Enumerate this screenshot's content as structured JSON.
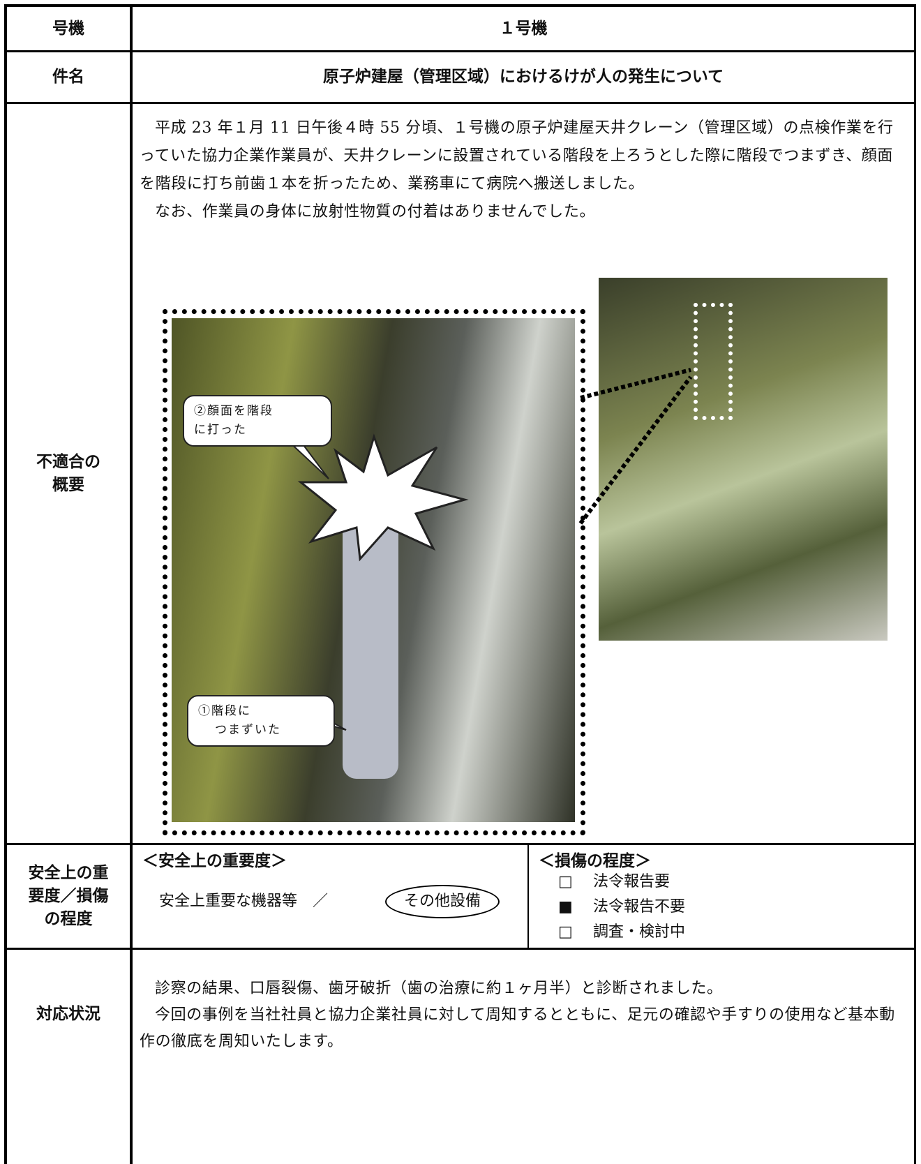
{
  "unit": {
    "label": "号機",
    "value": "１号機"
  },
  "subject": {
    "label": "件名",
    "value": "原子炉建屋（管理区域）におけるけが人の発生について"
  },
  "overview": {
    "label_lines": [
      "不適合の",
      "概要"
    ],
    "paragraphs": [
      "平成 23 年１月 11 日午後４時 55 分頃、１号機の原子炉建屋天井クレーン（管理区域）の点検作業を行っていた協力企業作業員が、天井クレーンに設置されている階段を上ろうとした際に階段でつまずき、顔面を階段に打ち前歯１本を折ったため、業務車にて病院へ搬送しました。",
      "なお、作業員の身体に放射性物質の付着はありませんでした。"
    ],
    "callouts": [
      [
        "②顔面を階段",
        "に打った"
      ],
      [
        "①階段に",
        "つまずいた"
      ]
    ]
  },
  "severity": {
    "label_lines": [
      "安全上の重",
      "要度／損傷",
      "の程度"
    ],
    "importance_heading": "＜安全上の重要度＞",
    "importance_text": "安全上重要な機器等　／",
    "importance_selected": "その他設備",
    "damage_heading": "＜損傷の程度＞",
    "damage_options": [
      {
        "mark": "□",
        "text": "法令報告要"
      },
      {
        "mark": "■",
        "text": "法令報告不要"
      },
      {
        "mark": "□",
        "text": "調査・検討中"
      }
    ]
  },
  "response": {
    "label": "対応状況",
    "paragraphs": [
      "診察の結果、口唇裂傷、歯牙破折（歯の治療に約１ヶ月半）と診断されました。",
      "今回の事例を当社社員と協力企業社員に対して周知するとともに、足元の確認や手すりの使用など基本動作の徹底を周知いたします。"
    ]
  }
}
